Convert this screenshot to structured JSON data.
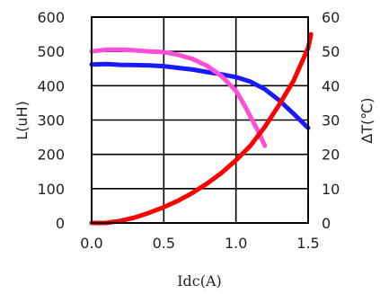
{
  "chart_data": {
    "type": "line",
    "xlabel": "Idc(A)",
    "ylabel_left": "L(uH)",
    "ylabel_right": "∆T(℃)",
    "xlim": [
      0,
      1.5
    ],
    "ylim_left": [
      0,
      600
    ],
    "ylim_right": [
      0,
      60
    ],
    "x_ticks": [
      "0.0",
      "0.5",
      "1.0",
      "1.5"
    ],
    "y_left_ticks": [
      "0",
      "100",
      "200",
      "300",
      "400",
      "500",
      "600"
    ],
    "y_right_ticks": [
      "0",
      "10",
      "20",
      "30",
      "40",
      "50",
      "60"
    ],
    "grid": true,
    "series": [
      {
        "axis": "left",
        "color": "#1a1aff",
        "points": [
          [
            0.0,
            462
          ],
          [
            0.1,
            463
          ],
          [
            0.2,
            461
          ],
          [
            0.3,
            460
          ],
          [
            0.4,
            459
          ],
          [
            0.5,
            457
          ],
          [
            0.6,
            452
          ],
          [
            0.7,
            447
          ],
          [
            0.8,
            440
          ],
          [
            0.9,
            433
          ],
          [
            1.0,
            425
          ],
          [
            1.1,
            412
          ],
          [
            1.2,
            390
          ],
          [
            1.3,
            357
          ],
          [
            1.4,
            318
          ],
          [
            1.5,
            277
          ]
        ]
      },
      {
        "axis": "left",
        "color": "#ff4fd8",
        "points": [
          [
            0.0,
            500
          ],
          [
            0.1,
            505
          ],
          [
            0.2,
            505
          ],
          [
            0.3,
            503
          ],
          [
            0.4,
            500
          ],
          [
            0.5,
            498
          ],
          [
            0.6,
            490
          ],
          [
            0.7,
            478
          ],
          [
            0.8,
            458
          ],
          [
            0.9,
            428
          ],
          [
            1.0,
            385
          ],
          [
            1.05,
            350
          ],
          [
            1.1,
            310
          ],
          [
            1.15,
            270
          ],
          [
            1.2,
            225
          ]
        ]
      },
      {
        "axis": "right",
        "color": "#ff0000",
        "points": [
          [
            0.0,
            0
          ],
          [
            0.1,
            0
          ],
          [
            0.2,
            0.6
          ],
          [
            0.3,
            1.6
          ],
          [
            0.4,
            3
          ],
          [
            0.5,
            4.6
          ],
          [
            0.6,
            6.5
          ],
          [
            0.7,
            8.8
          ],
          [
            0.8,
            11.5
          ],
          [
            0.9,
            14.6
          ],
          [
            1.0,
            18.3
          ],
          [
            1.1,
            22.5
          ],
          [
            1.2,
            28
          ],
          [
            1.3,
            34.5
          ],
          [
            1.4,
            41.5
          ],
          [
            1.5,
            51
          ],
          [
            1.52,
            55
          ]
        ]
      }
    ]
  }
}
